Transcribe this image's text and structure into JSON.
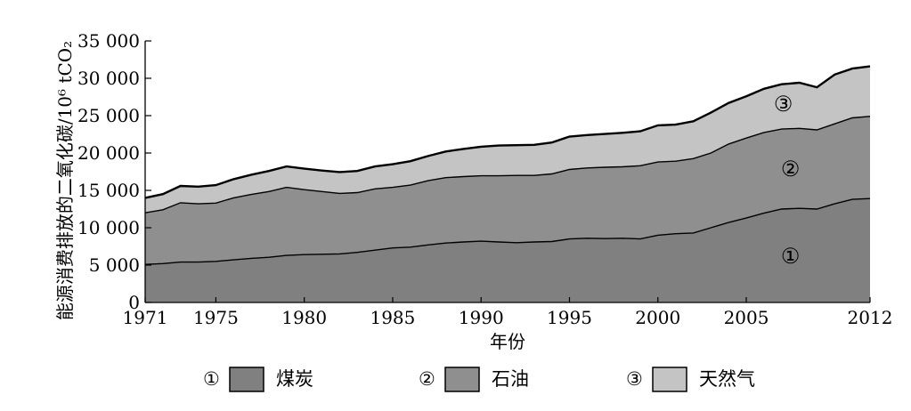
{
  "chart_data": {
    "type": "area",
    "stacked": true,
    "title": "",
    "xlabel": "年份",
    "ylabel": "能源消费排放的二氧化碳/10⁶ tCO₂",
    "x_tick_labels": [
      "1971",
      "1975",
      "1980",
      "1985",
      "1990",
      "1995",
      "2000",
      "2005",
      "2012"
    ],
    "y_tick_labels": [
      "0",
      "5 000",
      "10 000",
      "15 000",
      "20 000",
      "25 000",
      "30 000",
      "35 000"
    ],
    "xlim": [
      1971,
      2012
    ],
    "ylim": [
      0,
      35000
    ],
    "x": [
      1971,
      1972,
      1973,
      1974,
      1975,
      1976,
      1977,
      1978,
      1979,
      1980,
      1981,
      1982,
      1983,
      1984,
      1985,
      1986,
      1987,
      1988,
      1989,
      1990,
      1991,
      1992,
      1993,
      1994,
      1995,
      1996,
      1997,
      1998,
      1999,
      2000,
      2001,
      2002,
      2003,
      2004,
      2005,
      2006,
      2007,
      2008,
      2009,
      2010,
      2011,
      2012
    ],
    "series": [
      {
        "name": "煤炭",
        "marker": "①",
        "color": "#808080",
        "values": [
          5100,
          5200,
          5400,
          5400,
          5500,
          5700,
          5900,
          6050,
          6300,
          6400,
          6450,
          6500,
          6700,
          7000,
          7300,
          7400,
          7700,
          7950,
          8100,
          8200,
          8100,
          8000,
          8100,
          8150,
          8500,
          8600,
          8550,
          8600,
          8500,
          9000,
          9200,
          9300,
          10000,
          10700,
          11300,
          11950,
          12500,
          12600,
          12500,
          13200,
          13800,
          13900
        ]
      },
      {
        "name": "石油",
        "marker": "②",
        "color": "#8f8f8f",
        "values": [
          6900,
          7200,
          7950,
          7800,
          7800,
          8300,
          8550,
          8800,
          9100,
          8700,
          8400,
          8100,
          8000,
          8200,
          8100,
          8300,
          8600,
          8750,
          8750,
          8750,
          8850,
          9000,
          8900,
          9050,
          9300,
          9400,
          9550,
          9550,
          9800,
          9800,
          9700,
          9950,
          10000,
          10500,
          10700,
          10800,
          10700,
          10700,
          10600,
          10700,
          10900,
          11000
        ]
      },
      {
        "name": "天然气",
        "marker": "③",
        "color": "#c4c4c4",
        "values": [
          2000,
          2100,
          2250,
          2300,
          2400,
          2500,
          2650,
          2750,
          2800,
          2800,
          2800,
          2850,
          2900,
          3000,
          3100,
          3200,
          3300,
          3500,
          3700,
          3900,
          4050,
          4050,
          4100,
          4200,
          4400,
          4400,
          4450,
          4550,
          4600,
          4900,
          4900,
          5000,
          5400,
          5500,
          5600,
          5850,
          6000,
          6100,
          5700,
          6600,
          6600,
          6700
        ]
      }
    ],
    "area_labels": [
      "①",
      "②",
      "③"
    ],
    "grid": false,
    "legend_position": "bottom"
  }
}
